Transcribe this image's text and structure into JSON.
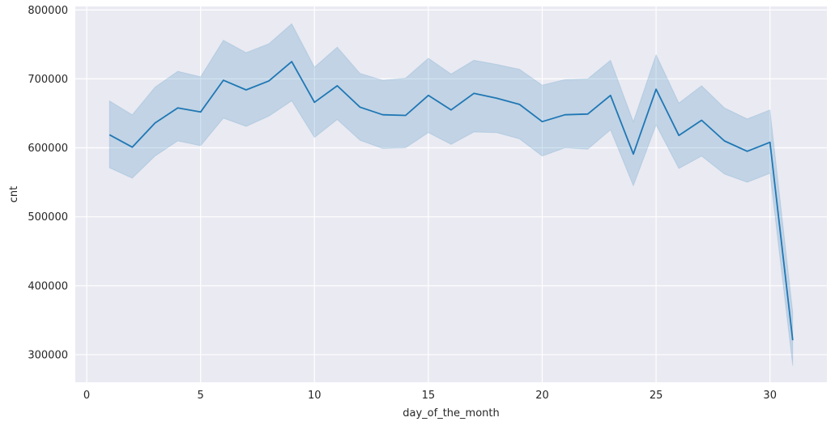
{
  "chart_data": {
    "type": "line",
    "xlabel": "day_of_the_month",
    "ylabel": "cnt",
    "xlim": [
      -0.5,
      32.5
    ],
    "ylim": [
      260000,
      805000
    ],
    "x_ticks": [
      0,
      5,
      10,
      15,
      20,
      25,
      30
    ],
    "y_ticks": [
      300000,
      400000,
      500000,
      600000,
      700000,
      800000
    ],
    "grid": true,
    "legend": "none",
    "colors": {
      "line": "#1f77b4",
      "band": "#1f77b4",
      "background": "#eaeaf2",
      "grid": "#ffffff"
    },
    "series": [
      {
        "x": [
          1,
          2,
          3,
          4,
          5,
          6,
          7,
          8,
          9,
          10,
          11,
          12,
          13,
          14,
          15,
          16,
          17,
          18,
          19,
          20,
          21,
          22,
          23,
          24,
          25,
          26,
          27,
          28,
          29,
          30,
          31
        ],
        "values": [
          619000,
          601000,
          636000,
          658000,
          652000,
          698000,
          684000,
          697000,
          725000,
          666000,
          690000,
          659000,
          648000,
          647000,
          676000,
          655000,
          679000,
          672000,
          663000,
          638000,
          648000,
          649000,
          676000,
          591000,
          685000,
          618000,
          640000,
          610000,
          595000,
          608000,
          321000
        ],
        "ci_upper": [
          668000,
          648000,
          688000,
          711000,
          703000,
          756000,
          738000,
          751000,
          780000,
          717000,
          746000,
          708000,
          698000,
          701000,
          730000,
          707000,
          727000,
          721000,
          714000,
          691000,
          699000,
          700000,
          727000,
          638000,
          735000,
          665000,
          690000,
          658000,
          642000,
          655000,
          362000
        ],
        "ci_lower": [
          571000,
          556000,
          588000,
          610000,
          603000,
          643000,
          631000,
          646000,
          668000,
          615000,
          641000,
          611000,
          599000,
          600000,
          622000,
          605000,
          623000,
          622000,
          613000,
          588000,
          600000,
          598000,
          626000,
          545000,
          633000,
          570000,
          588000,
          562000,
          550000,
          563000,
          284000
        ]
      }
    ]
  }
}
